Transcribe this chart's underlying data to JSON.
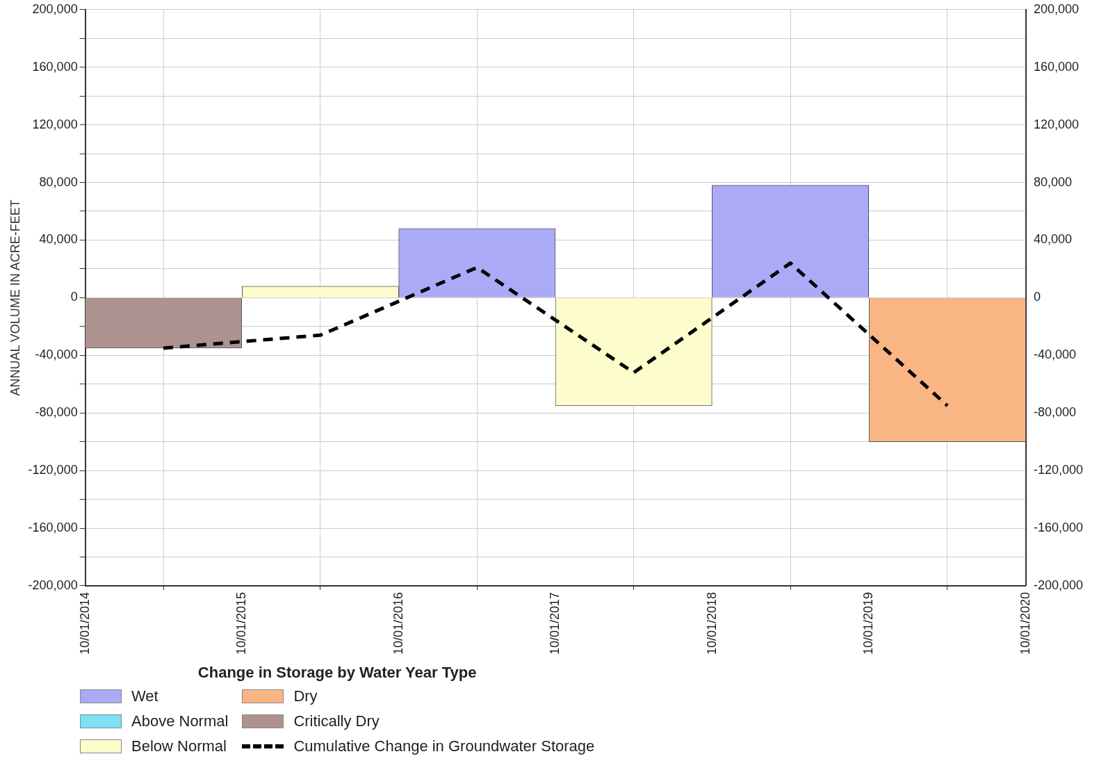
{
  "chart_data": {
    "type": "bar",
    "ylabel": "ANNUAL VOLUME IN ACRE-FEET",
    "legend_title": "Change in Storage by Water Year Type",
    "legend": "bottom left",
    "grid": true,
    "x": [
      "2015-04-01",
      "2016-04-01",
      "2017-04-01",
      "2018-04-01",
      "2019-04-01",
      "2020-04-01"
    ],
    "xlim": [
      "2014-10-01",
      "2020-10-01"
    ],
    "xticks": [
      {
        "value": "2014-10-01",
        "label": "10/01/2014"
      },
      {
        "value": "2015-10-01",
        "label": "10/01/2015"
      },
      {
        "value": "2016-10-01",
        "label": "10/01/2016"
      },
      {
        "value": "2017-10-01",
        "label": "10/01/2017"
      },
      {
        "value": "2018-10-01",
        "label": "10/01/2018"
      },
      {
        "value": "2019-10-01",
        "label": "10/01/2019"
      },
      {
        "value": "2020-10-01",
        "label": "10/01/2020"
      }
    ],
    "ylim": [
      -200000,
      200000
    ],
    "yticks": [
      {
        "value": -200000,
        "label": "-200,000"
      },
      {
        "value": -180000,
        "label": null
      },
      {
        "value": -160000,
        "label": "-160,000"
      },
      {
        "value": -140000,
        "label": null
      },
      {
        "value": -120000,
        "label": "-120,000"
      },
      {
        "value": -100000,
        "label": null
      },
      {
        "value": -80000,
        "label": "-80,000"
      },
      {
        "value": -60000,
        "label": null
      },
      {
        "value": -40000,
        "label": "-40,000"
      },
      {
        "value": -20000,
        "label": null
      },
      0,
      {
        "value": 20000,
        "label": null
      },
      {
        "value": 40000,
        "label": "40,000"
      },
      {
        "value": 60000,
        "label": null
      },
      {
        "value": 80000,
        "label": "80,000"
      },
      {
        "value": 100000,
        "label": null
      },
      {
        "value": 120000,
        "label": "120,000"
      },
      {
        "value": 140000,
        "label": null
      },
      {
        "value": 160000,
        "label": "160,000"
      },
      {
        "value": 180000,
        "label": null
      },
      {
        "value": 200000,
        "label": "200,000"
      }
    ],
    "y2lim": [
      -200000,
      200000
    ],
    "y2ticks": [
      {
        "value": -200000,
        "label": "-200,000"
      },
      {
        "value": -180000,
        "label": null
      },
      {
        "value": -160000,
        "label": "-160,000"
      },
      {
        "value": -140000,
        "label": null
      },
      {
        "value": -120000,
        "label": "-120,000"
      },
      {
        "value": -100000,
        "label": null
      },
      {
        "value": -80000,
        "label": "-80,000"
      },
      {
        "value": -60000,
        "label": null
      },
      {
        "value": -40000,
        "label": "-40,000"
      },
      {
        "value": -20000,
        "label": null
      },
      0,
      {
        "value": 20000,
        "label": null
      },
      {
        "value": 40000,
        "label": "40,000"
      },
      {
        "value": 60000,
        "label": null
      },
      {
        "value": 80000,
        "label": "80,000"
      },
      {
        "value": 100000,
        "label": null
      },
      {
        "value": 120000,
        "label": "120,000"
      },
      {
        "value": 140000,
        "label": null
      },
      {
        "value": 160000,
        "label": "160,000"
      },
      {
        "value": 180000,
        "label": null
      },
      {
        "value": 200000,
        "label": "200,000"
      }
    ],
    "series": [
      {
        "name": "Wet",
        "color": "#aaaaf7",
        "values": [
          null,
          null,
          48000,
          null,
          78000,
          null
        ]
      },
      {
        "name": "Above Normal",
        "color": "#7de0f5",
        "values": [
          null,
          null,
          null,
          null,
          null,
          null
        ]
      },
      {
        "name": "Below Normal",
        "color": "#fcfccc",
        "values": [
          null,
          8000,
          null,
          -75000,
          null,
          null
        ]
      },
      {
        "name": "Dry",
        "color": "#f9b584",
        "values": [
          null,
          null,
          null,
          null,
          null,
          -100000
        ]
      },
      {
        "name": "Critically Dry",
        "color": "#ad9290",
        "values": [
          -35000,
          null,
          null,
          null,
          null,
          null
        ]
      },
      {
        "name": "Cumulative Change in Groundwater Storage",
        "type": "line",
        "color": "#000000",
        "line_style": "dashed",
        "marker": "none",
        "values": [
          -35000,
          -26000,
          21000,
          -52000,
          24000,
          -75000
        ]
      }
    ]
  }
}
